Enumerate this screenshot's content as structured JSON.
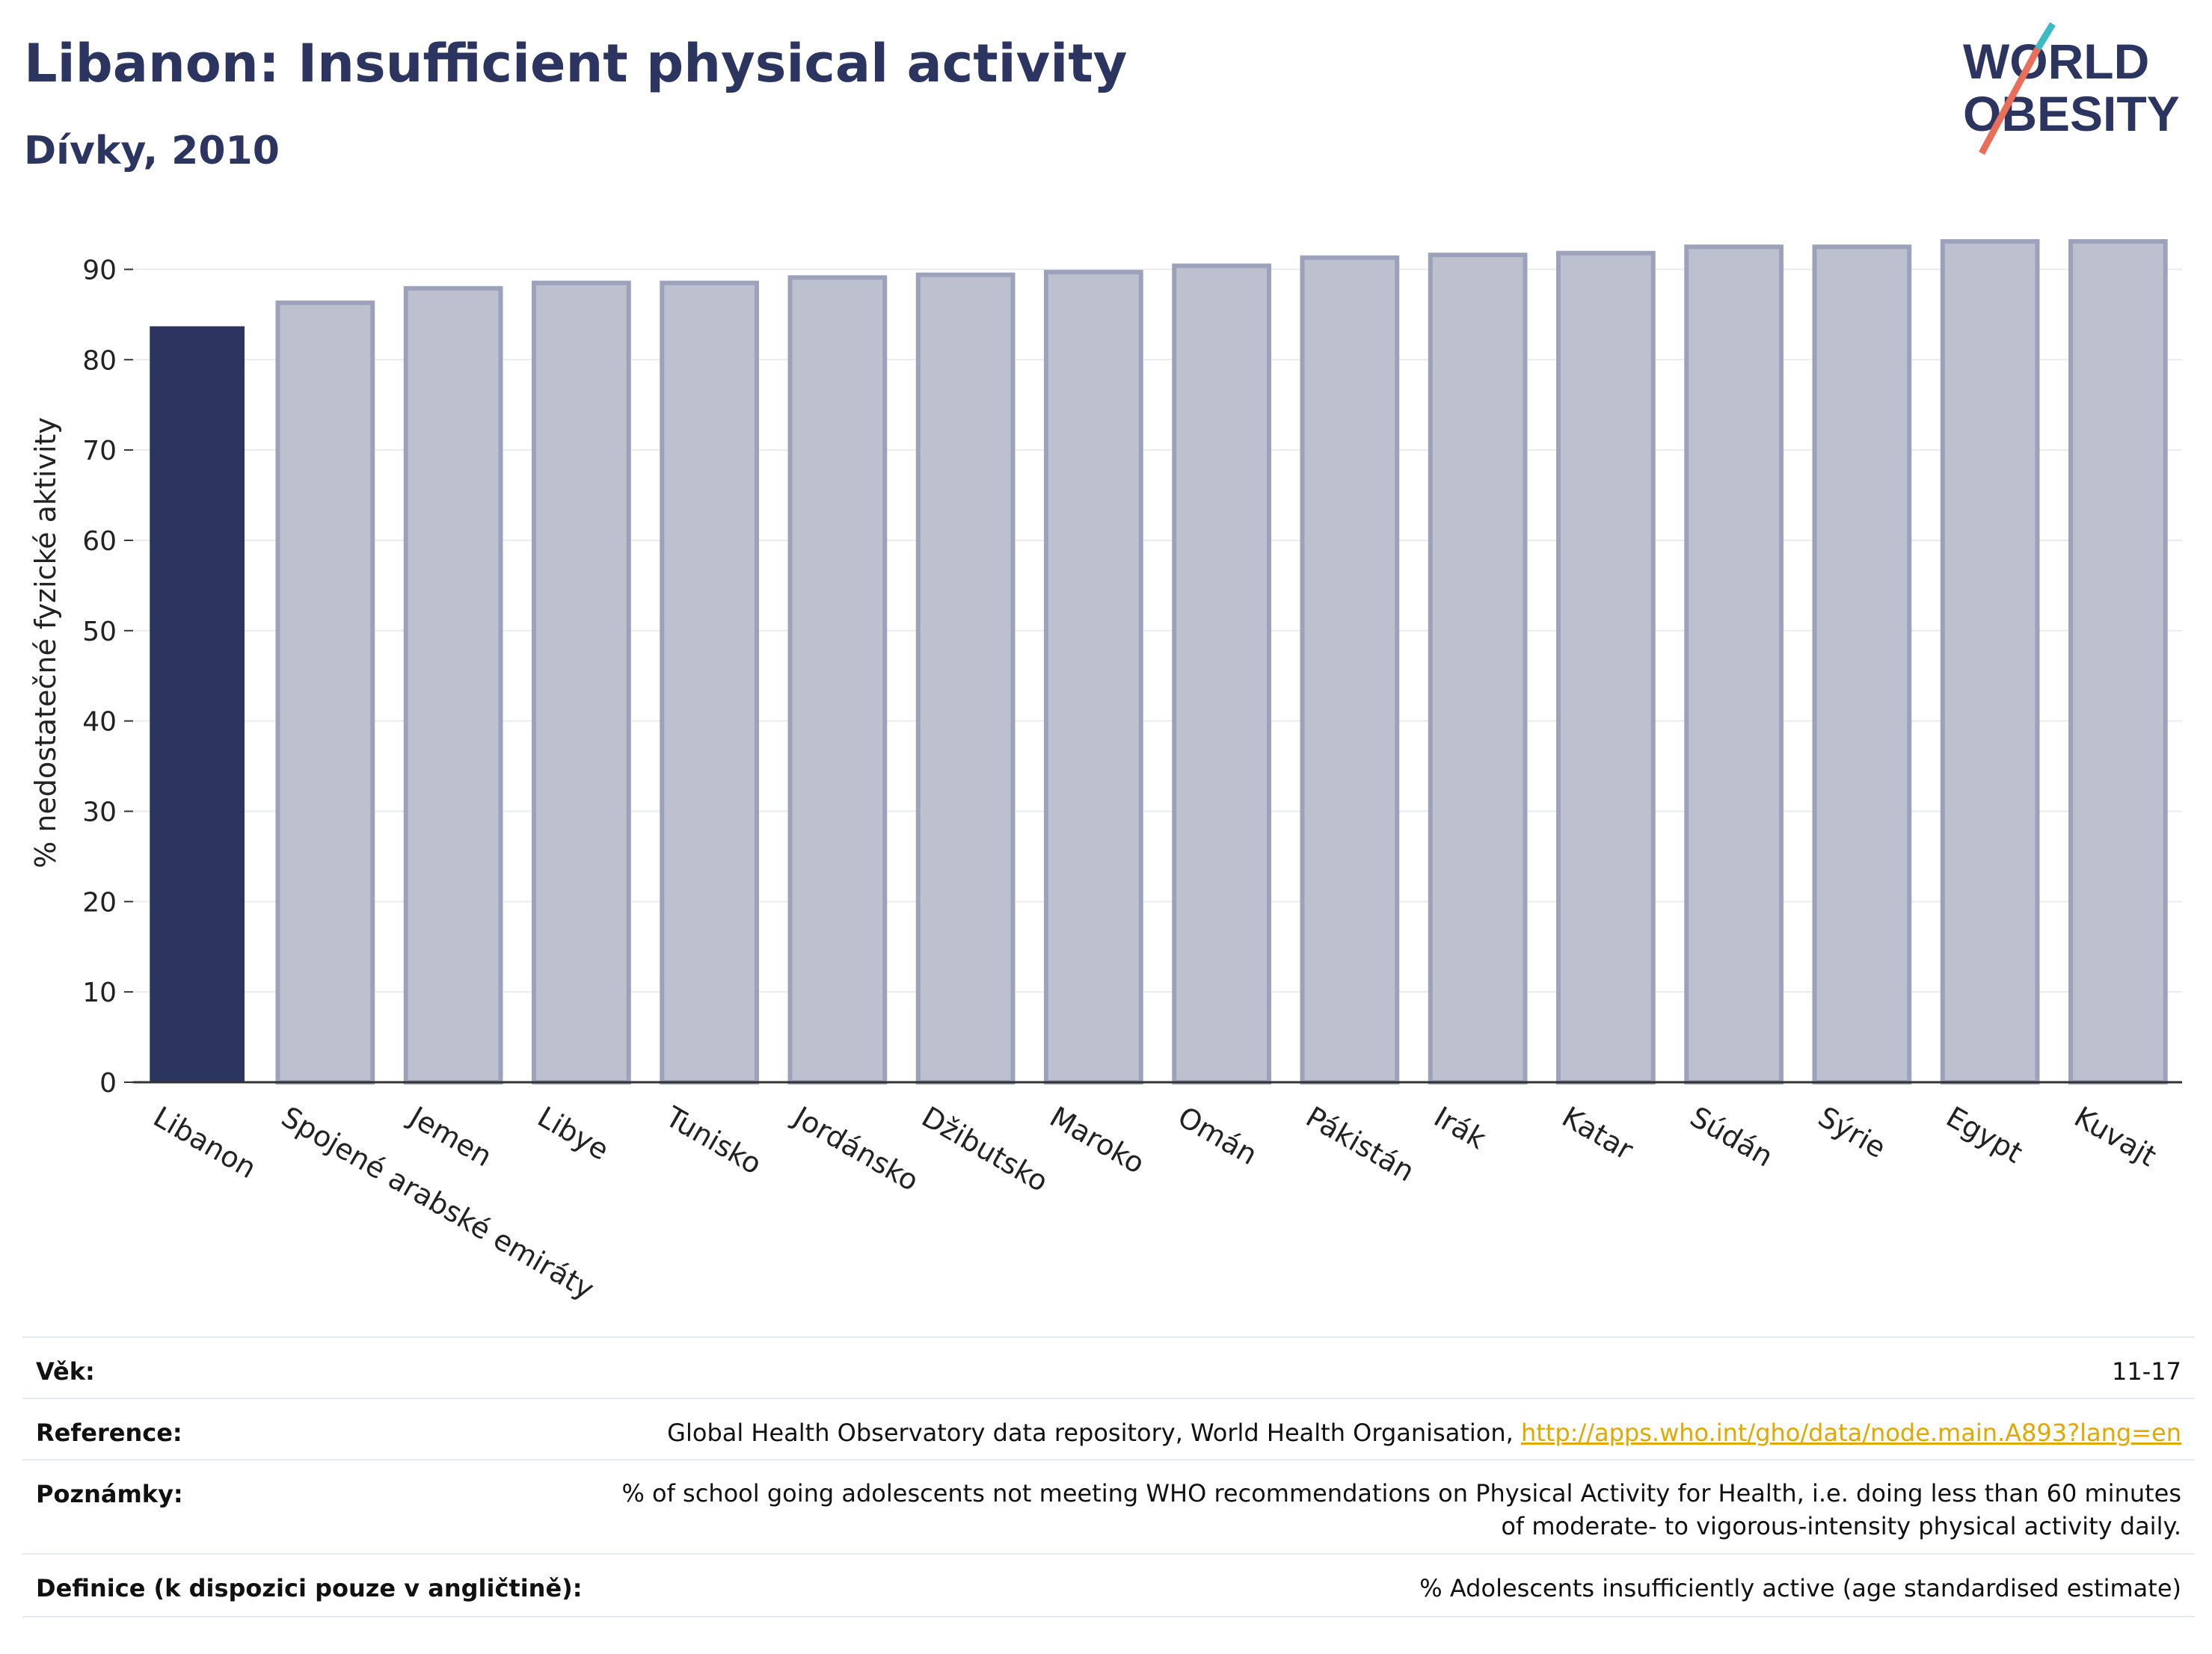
{
  "header": {
    "title": "Libanon: Insufficient physical activity",
    "subtitle": "Dívky, 2010"
  },
  "logo": {
    "line1": "WORLD",
    "line2": "OBESITY"
  },
  "colors": {
    "highlight": "#2b3560",
    "bar": "#bdc1cf",
    "bar_border": "#9da2ba",
    "grid": "#e9ebef"
  },
  "chart_data": {
    "type": "bar",
    "ylabel": "% nedostatečné fyzické aktivity",
    "ylim": [
      0,
      95
    ],
    "yticks": [
      0,
      10,
      20,
      30,
      40,
      50,
      60,
      70,
      80,
      90
    ],
    "grid": true,
    "highlight_category": "Libanon",
    "categories": [
      "Libanon",
      "Spojené arabské emiráty",
      "Jemen",
      "Libye",
      "Tunisko",
      "Jordánsko",
      "Džibutsko",
      "Maroko",
      "Omán",
      "Pákistán",
      "Irák",
      "Katar",
      "Súdán",
      "Sýrie",
      "Egypt",
      "Kuvajt"
    ],
    "values": [
      83.7,
      86.3,
      87.9,
      88.5,
      88.5,
      89.1,
      89.4,
      89.7,
      90.4,
      91.3,
      91.6,
      91.8,
      92.5,
      92.5,
      93.1,
      93.1
    ]
  },
  "meta": {
    "age": {
      "label": "Věk:",
      "value": "11-17"
    },
    "reference": {
      "label": "Reference:",
      "text": "Global Health Observatory data repository, World Health Organisation, ",
      "link": "http://apps.who.int/gho/data/node.main.A893?lang=en"
    },
    "notes": {
      "label": "Poznámky:",
      "value": "% of school going adolescents not meeting WHO recommendations on Physical Activity for Health, i.e. doing less than 60 minutes of moderate- to vigorous-intensity physical activity daily."
    },
    "definition": {
      "label": "Definice (k dispozici pouze v angličtině):",
      "value": "% Adolescents insufficiently active (age standardised estimate)"
    }
  }
}
